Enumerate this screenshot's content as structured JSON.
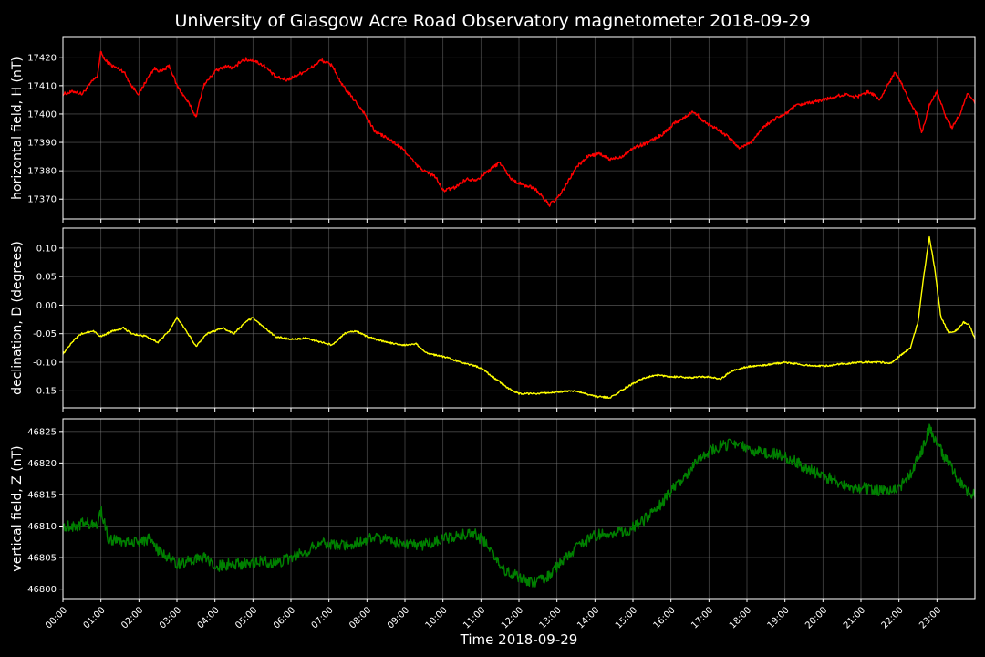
{
  "chart_data": {
    "type": "line",
    "title": "University of Glasgow Acre Road Observatory magnetometer 2018-09-29",
    "xlabel": "Time 2018-09-29",
    "x_unit": "hours",
    "xlim": [
      0,
      24
    ],
    "x_ticks": [
      "00:00",
      "01:00",
      "02:00",
      "03:00",
      "04:00",
      "05:00",
      "06:00",
      "07:00",
      "08:00",
      "09:00",
      "10:00",
      "11:00",
      "12:00",
      "13:00",
      "14:00",
      "15:00",
      "16:00",
      "17:00",
      "18:00",
      "19:00",
      "20:00",
      "21:00",
      "22:00",
      "23:00"
    ],
    "grid": true,
    "panels": [
      {
        "ylabel": "horizontal field, H (nT)",
        "color": "#ff0000",
        "ylim": [
          17363,
          17427
        ],
        "yticks": [
          17370,
          17380,
          17390,
          17400,
          17410,
          17420
        ],
        "noise": 0.6,
        "points": [
          [
            0,
            17407
          ],
          [
            0.3,
            17408
          ],
          [
            0.5,
            17407
          ],
          [
            0.8,
            17412
          ],
          [
            0.9,
            17413
          ],
          [
            1.0,
            17422
          ],
          [
            1.1,
            17419
          ],
          [
            1.3,
            17417
          ],
          [
            1.6,
            17415
          ],
          [
            1.8,
            17410
          ],
          [
            2.0,
            17407
          ],
          [
            2.2,
            17412
          ],
          [
            2.4,
            17416
          ],
          [
            2.6,
            17415
          ],
          [
            2.8,
            17417
          ],
          [
            3.0,
            17410
          ],
          [
            3.3,
            17404
          ],
          [
            3.5,
            17399
          ],
          [
            3.7,
            17410
          ],
          [
            4.0,
            17415
          ],
          [
            4.3,
            17417
          ],
          [
            4.5,
            17416
          ],
          [
            4.7,
            17419
          ],
          [
            5.0,
            17419
          ],
          [
            5.3,
            17417
          ],
          [
            5.6,
            17413
          ],
          [
            5.9,
            17412
          ],
          [
            6.2,
            17414
          ],
          [
            6.5,
            17416
          ],
          [
            6.8,
            17419
          ],
          [
            7.1,
            17417
          ],
          [
            7.3,
            17411
          ],
          [
            7.6,
            17406
          ],
          [
            7.9,
            17401
          ],
          [
            8.2,
            17394
          ],
          [
            8.6,
            17391
          ],
          [
            9.0,
            17387
          ],
          [
            9.3,
            17382
          ],
          [
            9.5,
            17380
          ],
          [
            9.8,
            17378
          ],
          [
            10.0,
            17373
          ],
          [
            10.3,
            17374
          ],
          [
            10.6,
            17377
          ],
          [
            10.9,
            17377
          ],
          [
            11.2,
            17380
          ],
          [
            11.5,
            17383
          ],
          [
            11.8,
            17377
          ],
          [
            12.1,
            17375
          ],
          [
            12.4,
            17374
          ],
          [
            12.6,
            17371
          ],
          [
            12.8,
            17368
          ],
          [
            13.0,
            17370
          ],
          [
            13.2,
            17374
          ],
          [
            13.5,
            17381
          ],
          [
            13.8,
            17385
          ],
          [
            14.1,
            17386
          ],
          [
            14.4,
            17384
          ],
          [
            14.7,
            17385
          ],
          [
            15.0,
            17388
          ],
          [
            15.4,
            17390
          ],
          [
            15.8,
            17393
          ],
          [
            16.1,
            17397
          ],
          [
            16.4,
            17399
          ],
          [
            16.6,
            17401
          ],
          [
            16.9,
            17397
          ],
          [
            17.2,
            17395
          ],
          [
            17.5,
            17392
          ],
          [
            17.8,
            17388
          ],
          [
            18.1,
            17390
          ],
          [
            18.4,
            17395
          ],
          [
            18.7,
            17398
          ],
          [
            19.0,
            17400
          ],
          [
            19.3,
            17403
          ],
          [
            19.7,
            17404
          ],
          [
            20.0,
            17405
          ],
          [
            20.3,
            17406
          ],
          [
            20.6,
            17407
          ],
          [
            20.9,
            17406
          ],
          [
            21.2,
            17408
          ],
          [
            21.5,
            17405
          ],
          [
            21.7,
            17410
          ],
          [
            21.9,
            17415
          ],
          [
            22.1,
            17410
          ],
          [
            22.3,
            17404
          ],
          [
            22.5,
            17399
          ],
          [
            22.6,
            17393
          ],
          [
            22.8,
            17403
          ],
          [
            23.0,
            17408
          ],
          [
            23.2,
            17400
          ],
          [
            23.4,
            17395
          ],
          [
            23.6,
            17400
          ],
          [
            23.8,
            17407
          ],
          [
            24.0,
            17404
          ]
        ]
      },
      {
        "ylabel": "declination, D (degrees)",
        "color": "#ffff00",
        "ylim": [
          -0.18,
          0.135
        ],
        "yticks": [
          -0.15,
          -0.1,
          -0.05,
          0.0,
          0.05,
          0.1
        ],
        "noise": 0.0015,
        "points": [
          [
            0,
            -0.085
          ],
          [
            0.3,
            -0.06
          ],
          [
            0.5,
            -0.05
          ],
          [
            0.8,
            -0.045
          ],
          [
            1.0,
            -0.055
          ],
          [
            1.3,
            -0.045
          ],
          [
            1.6,
            -0.04
          ],
          [
            1.8,
            -0.05
          ],
          [
            2.2,
            -0.055
          ],
          [
            2.5,
            -0.065
          ],
          [
            2.8,
            -0.045
          ],
          [
            3.0,
            -0.022
          ],
          [
            3.2,
            -0.04
          ],
          [
            3.5,
            -0.072
          ],
          [
            3.8,
            -0.05
          ],
          [
            4.2,
            -0.04
          ],
          [
            4.5,
            -0.05
          ],
          [
            4.8,
            -0.03
          ],
          [
            5.0,
            -0.022
          ],
          [
            5.3,
            -0.04
          ],
          [
            5.6,
            -0.055
          ],
          [
            6.0,
            -0.06
          ],
          [
            6.4,
            -0.058
          ],
          [
            6.8,
            -0.065
          ],
          [
            7.1,
            -0.07
          ],
          [
            7.4,
            -0.05
          ],
          [
            7.7,
            -0.045
          ],
          [
            8.0,
            -0.055
          ],
          [
            8.5,
            -0.065
          ],
          [
            9.0,
            -0.07
          ],
          [
            9.3,
            -0.068
          ],
          [
            9.6,
            -0.085
          ],
          [
            10.0,
            -0.09
          ],
          [
            10.5,
            -0.1
          ],
          [
            11.0,
            -0.11
          ],
          [
            11.4,
            -0.13
          ],
          [
            11.7,
            -0.145
          ],
          [
            12.0,
            -0.155
          ],
          [
            12.5,
            -0.155
          ],
          [
            13.0,
            -0.152
          ],
          [
            13.5,
            -0.15
          ],
          [
            14.0,
            -0.16
          ],
          [
            14.4,
            -0.162
          ],
          [
            14.8,
            -0.145
          ],
          [
            15.2,
            -0.13
          ],
          [
            15.6,
            -0.122
          ],
          [
            16.0,
            -0.125
          ],
          [
            16.5,
            -0.127
          ],
          [
            17.0,
            -0.125
          ],
          [
            17.3,
            -0.13
          ],
          [
            17.6,
            -0.115
          ],
          [
            18.0,
            -0.108
          ],
          [
            18.5,
            -0.105
          ],
          [
            19.0,
            -0.1
          ],
          [
            19.5,
            -0.105
          ],
          [
            20.0,
            -0.107
          ],
          [
            20.5,
            -0.103
          ],
          [
            21.0,
            -0.1
          ],
          [
            21.5,
            -0.1
          ],
          [
            21.8,
            -0.102
          ],
          [
            22.0,
            -0.09
          ],
          [
            22.3,
            -0.075
          ],
          [
            22.5,
            -0.03
          ],
          [
            22.65,
            0.05
          ],
          [
            22.8,
            0.12
          ],
          [
            22.95,
            0.06
          ],
          [
            23.1,
            -0.02
          ],
          [
            23.3,
            -0.048
          ],
          [
            23.5,
            -0.045
          ],
          [
            23.7,
            -0.03
          ],
          [
            23.85,
            -0.035
          ],
          [
            24.0,
            -0.058
          ]
        ]
      },
      {
        "ylabel": "vertical field, Z (nT)",
        "color": "#008000",
        "ylim": [
          46798.5,
          46827
        ],
        "yticks": [
          46800,
          46805,
          46810,
          46815,
          46820,
          46825
        ],
        "noise": 0.9,
        "points": [
          [
            0,
            46810
          ],
          [
            0.3,
            46810
          ],
          [
            0.6,
            46810.5
          ],
          [
            0.9,
            46810
          ],
          [
            1.0,
            46812.5
          ],
          [
            1.2,
            46808
          ],
          [
            1.6,
            46807.5
          ],
          [
            2.0,
            46807.5
          ],
          [
            2.3,
            46808
          ],
          [
            2.5,
            46806
          ],
          [
            2.8,
            46805
          ],
          [
            3.0,
            46804
          ],
          [
            3.3,
            46804.5
          ],
          [
            3.7,
            46805
          ],
          [
            4.0,
            46803.5
          ],
          [
            4.4,
            46804
          ],
          [
            4.8,
            46804
          ],
          [
            5.2,
            46804.5
          ],
          [
            5.6,
            46804
          ],
          [
            6.0,
            46805
          ],
          [
            6.4,
            46806
          ],
          [
            6.8,
            46807.5
          ],
          [
            7.2,
            46807
          ],
          [
            7.6,
            46807
          ],
          [
            8.0,
            46808
          ],
          [
            8.5,
            46808
          ],
          [
            9.0,
            46807
          ],
          [
            9.5,
            46807
          ],
          [
            10.0,
            46808
          ],
          [
            10.4,
            46808.5
          ],
          [
            10.8,
            46809
          ],
          [
            11.2,
            46807
          ],
          [
            11.6,
            46803
          ],
          [
            12.0,
            46802
          ],
          [
            12.4,
            46801
          ],
          [
            12.8,
            46802
          ],
          [
            13.2,
            46805
          ],
          [
            13.6,
            46807
          ],
          [
            14.0,
            46808.5
          ],
          [
            14.4,
            46809
          ],
          [
            14.8,
            46809
          ],
          [
            15.2,
            46810.5
          ],
          [
            15.6,
            46812.5
          ],
          [
            16.0,
            46815.5
          ],
          [
            16.4,
            46818
          ],
          [
            16.8,
            46821
          ],
          [
            17.2,
            46822.5
          ],
          [
            17.6,
            46823
          ],
          [
            18.0,
            46822.5
          ],
          [
            18.4,
            46821.5
          ],
          [
            18.8,
            46821.5
          ],
          [
            19.2,
            46820.5
          ],
          [
            19.6,
            46819
          ],
          [
            20.0,
            46818
          ],
          [
            20.4,
            46817
          ],
          [
            20.8,
            46816
          ],
          [
            21.2,
            46816
          ],
          [
            21.6,
            46815.5
          ],
          [
            22.0,
            46816
          ],
          [
            22.3,
            46818
          ],
          [
            22.6,
            46822
          ],
          [
            22.8,
            46825.5
          ],
          [
            23.0,
            46823
          ],
          [
            23.3,
            46820
          ],
          [
            23.6,
            46817
          ],
          [
            23.8,
            46815.5
          ],
          [
            24.0,
            46815
          ]
        ]
      }
    ]
  }
}
